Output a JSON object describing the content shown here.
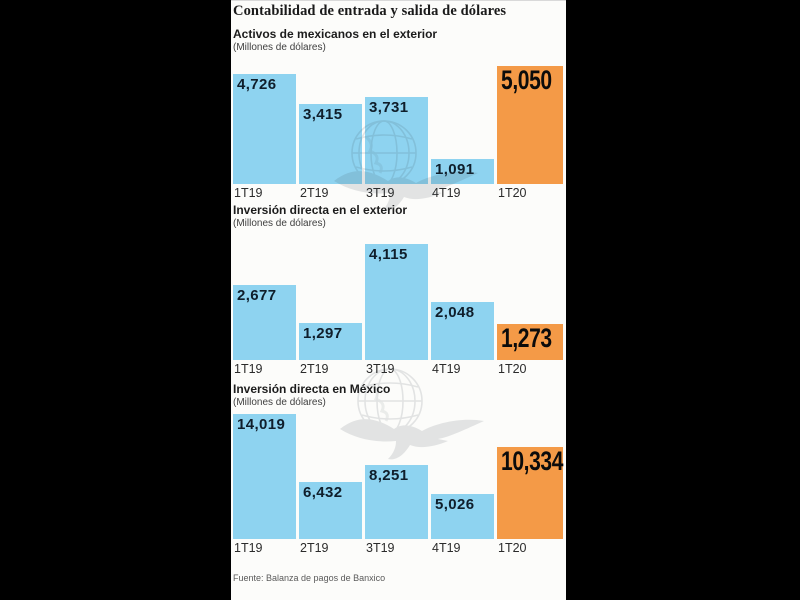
{
  "page": {
    "title": "Contabilidad de entrada y salida de dólares",
    "source": "Fuente: Balanza de pagos de Banxico"
  },
  "colors": {
    "background": "#000000",
    "canvas": "#fcfcfa",
    "bar_blue": "#8ed3f0",
    "bar_orange": "#f49a47",
    "value_label": "#0f1e2b",
    "heading_text": "#1c1c1c",
    "source_text": "#5a5a5a",
    "watermark": "#3a4750"
  },
  "icons": {
    "watermark": "globe-eagle-icon"
  },
  "chart_data": [
    {
      "type": "bar",
      "title": "Activos de mexicanos en el exterior",
      "subtitle": "(Millones de dólares)",
      "categories": [
        "1T19",
        "2T19",
        "3T19",
        "4T19",
        "1T20"
      ],
      "values": [
        4726,
        3415,
        3731,
        1091,
        5050
      ],
      "value_labels": [
        "4,726",
        "3,415",
        "3,731",
        "1,091",
        "5,050"
      ],
      "highlight_index": 4,
      "ylim": [
        0,
        5050
      ],
      "grid": false,
      "legend": "none"
    },
    {
      "type": "bar",
      "title": "Inversión directa en el exterior",
      "subtitle": "(Millones de dólares)",
      "categories": [
        "1T19",
        "2T19",
        "3T19",
        "4T19",
        "1T20"
      ],
      "values": [
        2677,
        1297,
        4115,
        2048,
        1273
      ],
      "value_labels": [
        "2,677",
        "1,297",
        "4,115",
        "2,048",
        "1,273"
      ],
      "highlight_index": 4,
      "ylim": [
        0,
        4115
      ],
      "grid": false,
      "legend": "none"
    },
    {
      "type": "bar",
      "title": "Inversión directa en México",
      "subtitle": "(Millones de dólares)",
      "categories": [
        "1T19",
        "2T19",
        "3T19",
        "4T19",
        "1T20"
      ],
      "values": [
        14019,
        6432,
        8251,
        5026,
        10334
      ],
      "value_labels": [
        "14,019",
        "6,432",
        "8,251",
        "5,026",
        "10,334"
      ],
      "highlight_index": 4,
      "ylim": [
        0,
        14019
      ],
      "grid": false,
      "legend": "none"
    }
  ]
}
